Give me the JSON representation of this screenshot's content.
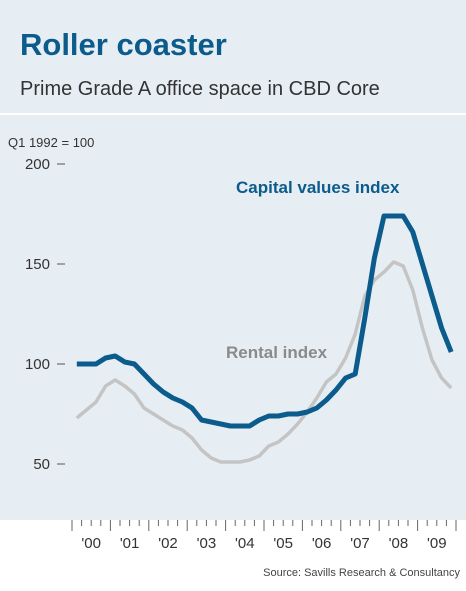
{
  "chart_data": {
    "type": "line",
    "title": "Roller coaster",
    "subtitle": "Prime Grade A office space in CBD Core",
    "ylabel": "Q1 1992 = 100",
    "source": "Source: Savills Research & Consultancy",
    "ylim": [
      40,
      200
    ],
    "yticks": [
      {
        "value": 200,
        "label": "200"
      },
      {
        "value": 150,
        "label": "150"
      },
      {
        "value": 100,
        "label": "100"
      },
      {
        "value": 50,
        "label": "50"
      }
    ],
    "xlim": [
      2000,
      2010
    ],
    "xticks": [
      {
        "value": 2000.5,
        "label": "'00"
      },
      {
        "value": 2001.5,
        "label": "'01"
      },
      {
        "value": 2002.5,
        "label": "'02"
      },
      {
        "value": 2003.5,
        "label": "'03"
      },
      {
        "value": 2004.5,
        "label": "'04"
      },
      {
        "value": 2005.5,
        "label": "'05"
      },
      {
        "value": 2006.5,
        "label": "'06"
      },
      {
        "value": 2007.5,
        "label": "'07"
      },
      {
        "value": 2008.5,
        "label": "'08"
      },
      {
        "value": 2009.5,
        "label": "'09"
      }
    ],
    "series": [
      {
        "name": "Capital values index",
        "color": "#0b5b8c",
        "x": [
          2000.125,
          2000.375,
          2000.625,
          2000.875,
          2001.125,
          2001.375,
          2001.625,
          2001.875,
          2002.125,
          2002.375,
          2002.625,
          2002.875,
          2003.125,
          2003.375,
          2003.625,
          2003.875,
          2004.125,
          2004.375,
          2004.625,
          2004.875,
          2005.125,
          2005.375,
          2005.625,
          2005.875,
          2006.125,
          2006.375,
          2006.625,
          2006.875,
          2007.125,
          2007.375,
          2007.625,
          2007.875,
          2008.125,
          2008.375,
          2008.625,
          2008.875,
          2009.125,
          2009.375,
          2009.625,
          2009.875
        ],
        "values": [
          100,
          100,
          100,
          103,
          104,
          101,
          100,
          95,
          90,
          86,
          83,
          81,
          78,
          72,
          71,
          70,
          69,
          69,
          69,
          72,
          74,
          74,
          75,
          75,
          76,
          78,
          82,
          87,
          93,
          95,
          123,
          153,
          174,
          174,
          174,
          166,
          150,
          134,
          118,
          106
        ]
      },
      {
        "name": "Rental index",
        "color": "#c4c4c4",
        "x": [
          2000.125,
          2000.375,
          2000.625,
          2000.875,
          2001.125,
          2001.375,
          2001.625,
          2001.875,
          2002.125,
          2002.375,
          2002.625,
          2002.875,
          2003.125,
          2003.375,
          2003.625,
          2003.875,
          2004.125,
          2004.375,
          2004.625,
          2004.875,
          2005.125,
          2005.375,
          2005.625,
          2005.875,
          2006.125,
          2006.375,
          2006.625,
          2006.875,
          2007.125,
          2007.375,
          2007.625,
          2007.875,
          2008.125,
          2008.375,
          2008.625,
          2008.875,
          2009.125,
          2009.375,
          2009.625,
          2009.875
        ],
        "values": [
          73,
          77,
          81,
          89,
          92,
          89,
          85,
          78,
          75,
          72,
          69,
          67,
          63,
          57,
          53,
          51,
          51,
          51,
          52,
          54,
          59,
          61,
          65,
          70,
          76,
          83,
          91,
          95,
          103,
          115,
          134,
          142,
          146,
          151,
          149,
          137,
          118,
          102,
          93,
          88
        ]
      }
    ]
  }
}
